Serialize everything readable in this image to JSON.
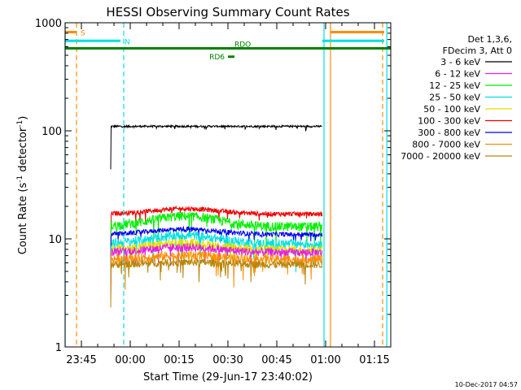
{
  "chart_data": {
    "type": "line",
    "title": "HESSI Observing Summary Count Rates",
    "xlabel": "Start Time (29-Jun-17 23:40:02)",
    "ylabel_parts": [
      "Count Rate (s",
      "-1",
      " detector",
      "-1",
      ")"
    ],
    "yscale": "log",
    "ylim": [
      1,
      1000
    ],
    "xlim_minutes_after_2340": [
      0,
      100
    ],
    "y_ticks": [
      {
        "value": 1,
        "label": "1"
      },
      {
        "value": 10,
        "label": "10"
      },
      {
        "value": 100,
        "label": "100"
      },
      {
        "value": 1000,
        "label": "1000"
      }
    ],
    "x_ticks": [
      {
        "minute": 5,
        "label": "23:45"
      },
      {
        "minute": 20,
        "label": "00:00"
      },
      {
        "minute": 35,
        "label": "00:15"
      },
      {
        "minute": 50,
        "label": "00:30"
      },
      {
        "minute": 65,
        "label": "00:45"
      },
      {
        "minute": 80,
        "label": "01:00"
      },
      {
        "minute": 95,
        "label": "01:15"
      }
    ],
    "legend": {
      "placement": "right",
      "header": [
        "Det 1,3,6,",
        "FDecim 3, Att 0"
      ],
      "entries": [
        {
          "label": "3 - 6 keV",
          "color": "#000000"
        },
        {
          "label": "6 - 12 keV",
          "color": "#e020e0"
        },
        {
          "label": "12 - 25 keV",
          "color": "#00ee00"
        },
        {
          "label": "25 - 50 keV",
          "color": "#00e0e0"
        },
        {
          "label": "50 - 100 keV",
          "color": "#e0e000"
        },
        {
          "label": "100 - 300 keV",
          "color": "#ee0000"
        },
        {
          "label": "300 - 800 keV",
          "color": "#0000ee"
        },
        {
          "label": "800 - 7000 keV",
          "color": "#ff8c00"
        },
        {
          "label": "7000 - 20000 keV",
          "color": "#b8860b"
        }
      ]
    },
    "series": [
      {
        "label": "3 - 6 keV",
        "color": "#000000",
        "start": 14,
        "end": 79,
        "level": 110,
        "noise": 0.02,
        "bump": 0
      },
      {
        "label": "100 - 300 keV",
        "color": "#ee0000",
        "start": 14,
        "end": 79,
        "level": 17,
        "noise": 0.05,
        "bump": 0.12
      },
      {
        "label": "12 - 25 keV",
        "color": "#00ee00",
        "start": 14,
        "end": 79,
        "level": 13,
        "noise": 0.1,
        "bump": 0.25
      },
      {
        "label": "300 - 800 keV",
        "color": "#0000ee",
        "start": 14,
        "end": 79,
        "level": 11,
        "noise": 0.05,
        "bump": 0.12
      },
      {
        "label": "25 - 50 keV",
        "color": "#00e0e0",
        "start": 14,
        "end": 79,
        "level": 9,
        "noise": 0.1,
        "bump": 0.2
      },
      {
        "label": "50 - 100 keV",
        "color": "#e0e000",
        "start": 14,
        "end": 79,
        "level": 8,
        "noise": 0.09,
        "bump": 0.15
      },
      {
        "label": "6 - 12 keV",
        "color": "#e020e0",
        "start": 14,
        "end": 79,
        "level": 7.5,
        "noise": 0.09,
        "bump": 0.12
      },
      {
        "label": "800 - 7000 keV",
        "color": "#ff8c00",
        "start": 14,
        "end": 79,
        "level": 6.5,
        "noise": 0.1,
        "bump": 0.08
      },
      {
        "label": "7000 - 20000 keV",
        "color": "#b8860b",
        "start": 14,
        "end": 79,
        "level": 5.8,
        "noise": 0.08,
        "bump": 0.05
      }
    ],
    "flag_bars": [
      {
        "label": "S",
        "color": "#ff8c00",
        "x0": 0,
        "x1": 3.5,
        "y": 820,
        "label_side": "right"
      },
      {
        "label": "",
        "color": "#ff8c00",
        "x0": 81.5,
        "x1": 98,
        "y": 820,
        "label_side": "none"
      },
      {
        "label": "N",
        "color": "#00e0e0",
        "x0": 0,
        "x1": 17,
        "y": 680,
        "label_side": "right"
      },
      {
        "label": "",
        "color": "#00e0e0",
        "x0": 79,
        "x1": 98,
        "y": 680,
        "label_side": "none"
      },
      {
        "label": "RDO",
        "color": "#008000",
        "x0": 0,
        "x1": 100,
        "y": 580,
        "label_side": "above"
      },
      {
        "label": "RD6",
        "color": "#008000",
        "x0": 50,
        "x1": 52,
        "y": 485,
        "label_side": "left"
      }
    ],
    "vertical_markers": [
      {
        "minute": 0,
        "color": "#00e0e0",
        "style": "solid"
      },
      {
        "minute": 3.5,
        "color": "#ff8c00",
        "style": "dashed"
      },
      {
        "minute": 18,
        "color": "#00e0e0",
        "style": "dashed"
      },
      {
        "minute": 79.5,
        "color": "#00e0e0",
        "style": "solid"
      },
      {
        "minute": 81.5,
        "color": "#ff8c00",
        "style": "solid"
      },
      {
        "minute": 97.5,
        "color": "#ff8c00",
        "style": "dashed"
      },
      {
        "minute": 98.8,
        "color": "#00e0e0",
        "style": "solid"
      }
    ]
  },
  "footer": {
    "timestamp": "10-Dec-2017 04:57"
  }
}
